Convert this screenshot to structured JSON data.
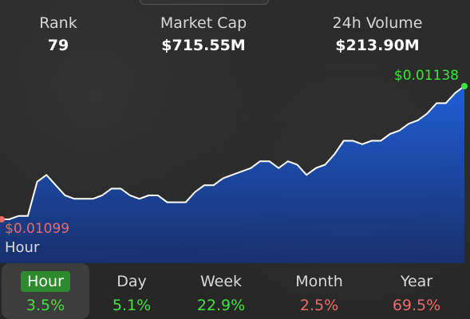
{
  "stats": {
    "rank": {
      "label": "Rank",
      "value": "79"
    },
    "market_cap": {
      "label": "Market Cap",
      "value": "$715.55M"
    },
    "volume": {
      "label": "24h Volume",
      "value": "$213.90M"
    }
  },
  "chart": {
    "high_label": "$0.01138",
    "low_label": "$0.01099",
    "period_label": "Hour",
    "colors": {
      "fill_top": "#1f5fd6",
      "fill_bottom": "#16327a",
      "line": "#ffffff",
      "high": "#39e639",
      "low": "#e86b6b"
    }
  },
  "chart_data": {
    "type": "area",
    "values": [
      0.01099,
      0.01099,
      0.011,
      0.011,
      0.0111,
      0.01112,
      0.01109,
      0.01106,
      0.01105,
      0.01105,
      0.01105,
      0.01106,
      0.01108,
      0.01108,
      0.01106,
      0.01105,
      0.01106,
      0.01106,
      0.01104,
      0.01104,
      0.01104,
      0.01107,
      0.01109,
      0.01109,
      0.01111,
      0.01112,
      0.01113,
      0.01114,
      0.01116,
      0.01116,
      0.01114,
      0.01116,
      0.01115,
      0.01112,
      0.01114,
      0.01115,
      0.01118,
      0.01122,
      0.01122,
      0.01121,
      0.01122,
      0.01122,
      0.01124,
      0.01125,
      0.01127,
      0.01128,
      0.0113,
      0.01133,
      0.01133,
      0.01136,
      0.01138
    ]
  },
  "tabs": [
    {
      "label": "Hour",
      "change": "3.5%",
      "trend": "pos",
      "active": true
    },
    {
      "label": "Day",
      "change": "5.1%",
      "trend": "pos",
      "active": false
    },
    {
      "label": "Week",
      "change": "22.9%",
      "trend": "pos",
      "active": false
    },
    {
      "label": "Month",
      "change": "2.5%",
      "trend": "neg",
      "active": false
    },
    {
      "label": "Year",
      "change": "69.5%",
      "trend": "neg",
      "active": false
    }
  ]
}
